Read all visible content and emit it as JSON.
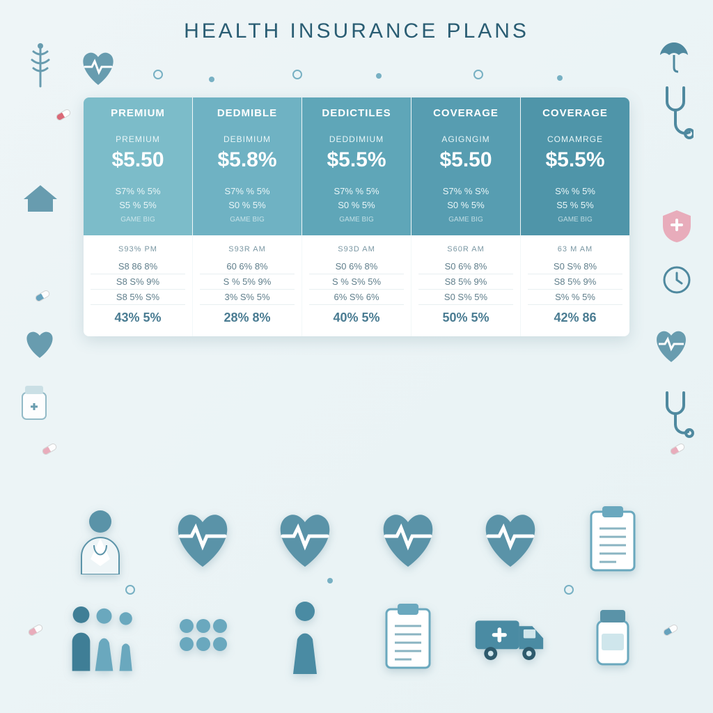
{
  "title": "HEALTH INSURANCE PLANS",
  "colors": {
    "title": "#2a5d73",
    "background": "#eef5f7",
    "teal_dark": "#4a8ba3",
    "teal_mid": "#5fa6b8",
    "teal_light": "#7cbcc9",
    "teal_pale": "#8fc7d1",
    "white": "#ffffff",
    "text_muted": "#5f7e8b",
    "heart": "#5a93a8",
    "pink": "#e8a5b5",
    "accent_red": "#d85a6a"
  },
  "table": {
    "columns": [
      {
        "header": "PREMIUM",
        "sub": "PREMIUM",
        "price": "$5.50",
        "pct1": "S7% % 5%",
        "pct2": "S5 % 5%",
        "bg": "#7cbcc9",
        "lower_label": "S93% PM",
        "rows": [
          "S8 86 8%",
          "S8 S% 9%",
          "S8 5% S%"
        ],
        "big": "43% 5%"
      },
      {
        "header": "DEDMIBLE",
        "sub": "DEBIMIUM",
        "price": "$5.8%",
        "pct1": "S7% % 5%",
        "pct2": "S0 % 5%",
        "bg": "#6fb2c3",
        "lower_label": "S93R AM",
        "rows": [
          "60 6% 8%",
          "S % 5% 9%",
          "3% S% 5%"
        ],
        "big": "28% 8%"
      },
      {
        "header": "DEDICTILES",
        "sub": "DEDDIMIUM",
        "price": "$5.5%",
        "pct1": "S7% % 5%",
        "pct2": "S0 % 5%",
        "bg": "#5fa6b8",
        "lower_label": "S93D AM",
        "rows": [
          "S0 6% 8%",
          "S % S% 5%",
          "6% S% 6%"
        ],
        "big": "40% 5%"
      },
      {
        "header": "COVERAGE",
        "sub": "AGIGNGIM",
        "price": "$5.50",
        "pct1": "S7% % S%",
        "pct2": "S0 % 5%",
        "bg": "#579db1",
        "lower_label": "S60R AM",
        "rows": [
          "S0 6% 8%",
          "S8 5% 9%",
          "S0 S% 5%"
        ],
        "big": "50% 5%"
      },
      {
        "header": "COVERAGE",
        "sub": "COMAMRGE",
        "price": "$5.5%",
        "pct1": "S% % 5%",
        "pct2": "S5 % 5%",
        "bg": "#4f95a9",
        "lower_label": "63 M AM",
        "rows": [
          "S0 S% 8%",
          "S8 5% 9%",
          "S% % 5%"
        ],
        "big": "42% 86"
      }
    ]
  },
  "icons_row1": [
    "doctor",
    "heart-pulse",
    "heart-pulse",
    "heart-pulse",
    "heart-pulse",
    "clipboard"
  ],
  "icons_row2": [
    "family",
    "pills",
    "person",
    "clipboard",
    "ambulance",
    "pill-bottle"
  ]
}
